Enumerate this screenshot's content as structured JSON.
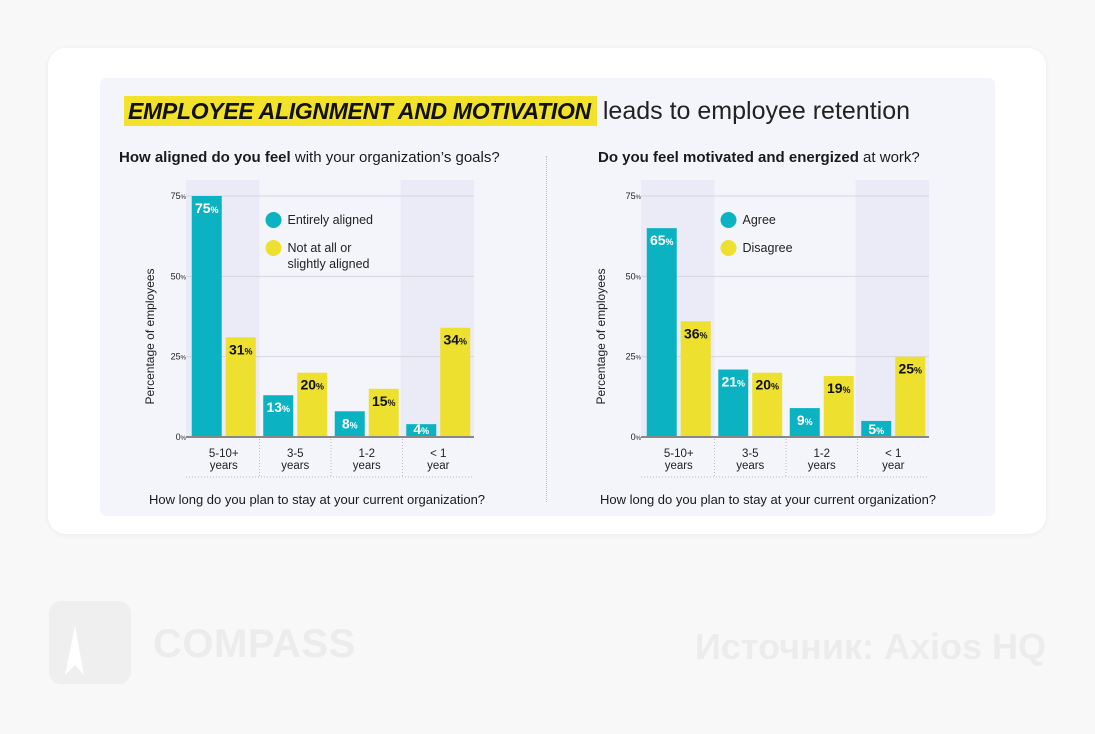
{
  "title": {
    "highlight": "EMPLOYEE ALIGNMENT AND MOTIVATION",
    "rest": "leads to employee retention"
  },
  "colors": {
    "series_a": "#0bb3c2",
    "series_b": "#ede02e",
    "highlight": "#f2e22b",
    "shade": "#ebebf7"
  },
  "footer": {
    "brand": "COMPASS",
    "source": "Источник:  Axios HQ"
  },
  "chart_data": [
    {
      "type": "bar",
      "title_bold": "How aligned do you feel",
      "title_rest": " with your organization’s goals?",
      "xlabel": "How long do you plan to stay at your current organization?",
      "ylabel": "Percentage of employees",
      "categories": [
        [
          "5-10+",
          "years"
        ],
        [
          "3-5",
          "years"
        ],
        [
          "1-2",
          "years"
        ],
        [
          "< 1",
          "year"
        ]
      ],
      "yticks": [
        "0%",
        "25%",
        "50%",
        "75%"
      ],
      "ylim": [
        0,
        75
      ],
      "grid": true,
      "legend_position": "top-center",
      "series": [
        {
          "name": "Entirely aligned",
          "values": [
            75,
            13,
            8,
            4
          ],
          "labels": [
            "75",
            "13",
            "8",
            "4"
          ]
        },
        {
          "name": "Not at all or slightly aligned",
          "name_lines": [
            "Not at all or",
            "slightly aligned"
          ],
          "values": [
            31,
            20,
            15,
            34
          ],
          "labels": [
            "31",
            "20",
            "15",
            "34"
          ]
        }
      ],
      "shaded_categories": [
        0,
        3
      ]
    },
    {
      "type": "bar",
      "title_bold": "Do you feel motivated and energized",
      "title_rest": " at work?",
      "xlabel": "How long do you plan to stay at your current organization?",
      "ylabel": "Percentage of employees",
      "categories": [
        [
          "5-10+",
          "years"
        ],
        [
          "3-5",
          "years"
        ],
        [
          "1-2",
          "years"
        ],
        [
          "< 1",
          "year"
        ]
      ],
      "yticks": [
        "0%",
        "25%",
        "50%",
        "75%"
      ],
      "ylim": [
        0,
        75
      ],
      "grid": true,
      "legend_position": "top-center",
      "series": [
        {
          "name": "Agree",
          "name_lines": [
            "Agree"
          ],
          "values": [
            65,
            21,
            9,
            5
          ],
          "labels": [
            "65",
            "21",
            "9",
            "5"
          ]
        },
        {
          "name": "Disagree",
          "name_lines": [
            "Disagree"
          ],
          "values": [
            36,
            20,
            19,
            25
          ],
          "labels": [
            "36",
            "20",
            "19",
            "25"
          ]
        }
      ],
      "shaded_categories": [
        0,
        3
      ]
    }
  ]
}
